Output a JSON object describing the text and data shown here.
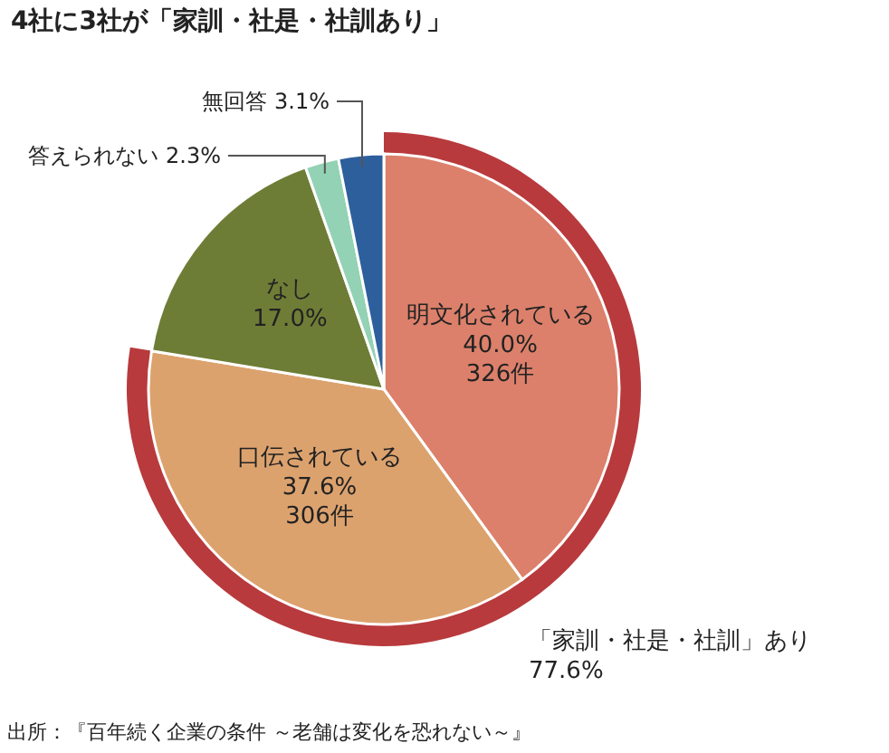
{
  "chart_data": {
    "type": "pie",
    "title": "4社に3社が「家訓・社是・社訓あり」",
    "categories": [
      "明文化されている",
      "口伝されている",
      "なし",
      "答えられない",
      "無回答"
    ],
    "values": [
      40.0,
      37.6,
      17.0,
      2.3,
      3.1
    ],
    "colors": [
      "#dc806b",
      "#dca26e",
      "#6e7d36",
      "#93d2b4",
      "#2d5f9c"
    ],
    "value_labels": [
      "40.0%\n326件",
      "37.6%\n306件",
      "17.0%",
      "2.3%",
      "3.1%"
    ],
    "annotations": [
      {
        "text": "「家訓・社是・社訓」あり\n77.6%",
        "x": "口伝されている"
      },
      "出所：『百年続く企業の条件 ～老舗は変化を恐れない～』"
    ]
  }
}
